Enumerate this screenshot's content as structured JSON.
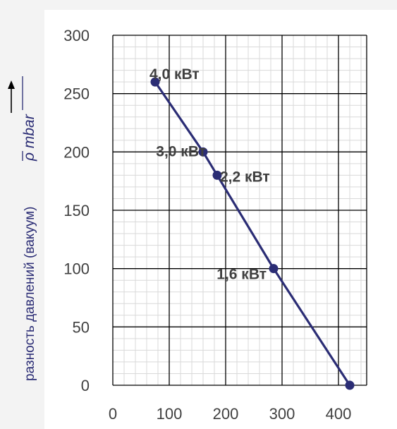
{
  "chart_data": {
    "type": "line",
    "title": "",
    "ylabel": "разность давлений (вакуум)",
    "ylabel_symbol": "ρ mbar",
    "xlabel": "",
    "xlim": [
      0,
      450
    ],
    "ylim": [
      0,
      300
    ],
    "x_ticks": [
      "0",
      "100",
      "200",
      "300",
      "400"
    ],
    "y_ticks": [
      "0",
      "50",
      "100",
      "150",
      "200",
      "250",
      "300"
    ],
    "grid": true,
    "line_color": "#2b2d75",
    "series": [
      {
        "points": [
          {
            "x": 75,
            "y": 260,
            "label": "4,0 кВт"
          },
          {
            "x": 160,
            "y": 200,
            "label": "3,0 кВт"
          },
          {
            "x": 185,
            "y": 180,
            "label": "2,2 кВт"
          },
          {
            "x": 285,
            "y": 100,
            "label": "1,6 кВт"
          },
          {
            "x": 420,
            "y": 0,
            "label": ""
          }
        ]
      }
    ]
  }
}
